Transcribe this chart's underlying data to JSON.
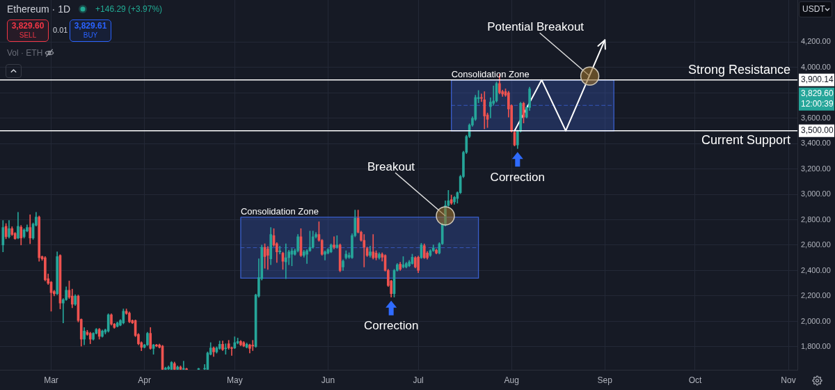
{
  "chart_data": {
    "type": "candlestick",
    "title": "Ethereum · 1D",
    "subtitle": "+146.29 (+3.97%)",
    "ylabel": "USDT",
    "x": [
      "--02-14",
      "--02-15",
      "--02-16",
      "--02-17",
      "--02-18",
      "--02-19",
      "--02-20",
      "--02-21",
      "--02-22",
      "--02-23",
      "--02-24",
      "--02-25",
      "--02-26",
      "--02-27",
      "--02-28",
      "--02-29",
      "--03-01",
      "--03-02",
      "--03-03",
      "--03-04",
      "--03-05",
      "--03-06",
      "--03-07",
      "--03-08",
      "--03-09",
      "--03-10",
      "--03-11",
      "--03-12",
      "--03-13",
      "--03-14",
      "--03-15",
      "--03-16",
      "--03-17",
      "--03-18",
      "--03-19",
      "--03-20",
      "--03-21",
      "--03-22",
      "--03-23",
      "--03-24",
      "--03-25",
      "--03-26",
      "--03-27",
      "--03-28",
      "--03-29",
      "--03-30",
      "--03-31",
      "--04-01",
      "--04-02",
      "--04-03",
      "--04-04",
      "--04-05",
      "--04-06",
      "--04-07",
      "--04-08",
      "--04-09",
      "--04-10",
      "--04-11",
      "--04-12",
      "--04-13",
      "--04-14",
      "--04-15",
      "--04-19",
      "--04-21",
      "--04-22",
      "--04-23",
      "--04-24",
      "--04-25",
      "--04-26",
      "--04-27",
      "--04-28",
      "--04-29",
      "--04-30",
      "--05-01",
      "--05-02",
      "--05-03",
      "--05-04",
      "--05-05",
      "--05-06",
      "--05-07",
      "--05-08",
      "--05-09",
      "--05-10",
      "--05-11",
      "--05-12",
      "--05-13",
      "--05-14",
      "--05-15",
      "--05-16",
      "--05-17",
      "--05-18",
      "--05-19",
      "--05-20",
      "--05-21",
      "--05-22",
      "--05-23",
      "--05-24",
      "--05-25",
      "--05-26",
      "--05-27",
      "--05-28",
      "--05-29",
      "--05-30",
      "--05-31",
      "--06-01",
      "--06-02",
      "--06-03",
      "--06-04",
      "--06-05",
      "--06-06",
      "--06-07",
      "--06-08",
      "--06-09",
      "--06-10",
      "--06-11",
      "--06-12",
      "--06-13",
      "--06-14",
      "--06-15",
      "--06-16",
      "--06-17",
      "--06-18",
      "--06-19",
      "--06-20",
      "--06-21",
      "--06-22",
      "--06-23",
      "--06-24",
      "--06-25",
      "--06-26",
      "--06-27",
      "--06-28",
      "--06-29",
      "--06-30",
      "--07-01",
      "--07-02",
      "--07-03",
      "--07-04",
      "--07-05",
      "--07-06",
      "--07-07",
      "--07-08",
      "--07-09",
      "--07-10",
      "--07-11",
      "--07-12",
      "--07-13",
      "--07-14",
      "--07-15",
      "--07-16",
      "--07-17",
      "--07-18",
      "--07-19",
      "--07-20",
      "--07-21",
      "--07-22",
      "--07-23",
      "--07-24",
      "--07-25",
      "--07-26",
      "--07-27",
      "--07-28",
      "--07-29",
      "--07-30",
      "--07-31",
      "--08-01",
      "--08-02",
      "--08-03",
      "--08-04",
      "--08-05",
      "--08-06",
      "--08-07"
    ],
    "ohlc": [
      [
        2601,
        2794,
        2547,
        2739
      ],
      [
        2748,
        2770,
        2650,
        2666
      ],
      [
        2666,
        2794,
        2655,
        2730
      ],
      [
        2730,
        2745,
        2675,
        2684
      ],
      [
        2693,
        2700,
        2645,
        2651
      ],
      [
        2656,
        2858,
        2650,
        2748
      ],
      [
        2742,
        2755,
        2601,
        2656
      ],
      [
        2666,
        2730,
        2655,
        2720
      ],
      [
        2711,
        2760,
        2705,
        2739
      ],
      [
        2739,
        2839,
        2611,
        2656
      ],
      [
        2656,
        2775,
        2645,
        2766
      ],
      [
        2757,
        2858,
        2750,
        2821
      ],
      [
        2821,
        2830,
        2473,
        2501
      ],
      [
        2510,
        2515,
        2480,
        2492
      ],
      [
        2501,
        2510,
        2318,
        2327
      ],
      [
        2336,
        2373,
        2290,
        2300
      ],
      [
        2309,
        2315,
        2080,
        2226
      ],
      [
        2235,
        2245,
        2200,
        2217
      ],
      [
        2217,
        2547,
        2210,
        2510
      ],
      [
        2519,
        2525,
        2098,
        2144
      ],
      [
        2144,
        2180,
        1988,
        2171
      ],
      [
        2171,
        2272,
        2165,
        2245
      ],
      [
        2245,
        2318,
        2180,
        2190
      ],
      [
        2199,
        2254,
        2107,
        2135
      ],
      [
        2135,
        2210,
        2125,
        2199
      ],
      [
        2199,
        2208,
        1995,
        2007
      ],
      [
        2016,
        2020,
        1805,
        1860
      ],
      [
        1860,
        1952,
        1815,
        1924
      ],
      [
        1915,
        1930,
        1890,
        1897
      ],
      [
        1906,
        1915,
        1824,
        1860
      ],
      [
        1860,
        1912,
        1852,
        1906
      ],
      [
        1906,
        1945,
        1900,
        1937
      ],
      [
        1937,
        1945,
        1860,
        1882
      ],
      [
        1882,
        1932,
        1875,
        1924
      ],
      [
        1915,
        1940,
        1900,
        1933
      ],
      [
        1924,
        2060,
        1915,
        2052
      ],
      [
        2052,
        2060,
        1970,
        1979
      ],
      [
        1979,
        1985,
        1945,
        1952
      ],
      [
        1961,
        1995,
        1955,
        1988
      ],
      [
        1970,
        2015,
        1965,
        2007
      ],
      [
        1988,
        2098,
        1980,
        2080
      ],
      [
        2080,
        2098,
        2055,
        2062
      ],
      [
        2065,
        2075,
        1990,
        1997
      ],
      [
        2007,
        2012,
        1982,
        1988
      ],
      [
        2007,
        2012,
        1880,
        1888
      ],
      [
        1897,
        1905,
        1815,
        1824
      ],
      [
        1833,
        1840,
        1769,
        1796
      ],
      [
        1796,
        1820,
        1790,
        1815
      ],
      [
        1815,
        1915,
        1810,
        1906
      ],
      [
        1906,
        1952,
        1780,
        1787
      ],
      [
        1787,
        1820,
        1741,
        1815
      ],
      [
        1815,
        1820,
        1800,
        1806
      ],
      [
        1815,
        1822,
        1790,
        1796
      ],
      [
        1806,
        1812,
        1620,
        1622
      ],
      [
        1622,
        1640,
        1620,
        1632
      ],
      [
        1625,
        1650,
        1620,
        1640
      ],
      [
        1622,
        1685,
        1620,
        1677
      ],
      [
        1668,
        1680,
        1620,
        1622
      ],
      [
        1622,
        1650,
        1620,
        1641
      ],
      [
        1641,
        1650,
        1620,
        1622
      ],
      [
        1622,
        1687,
        1620,
        1630
      ],
      [
        1627,
        1632,
        1620,
        1621
      ],
      [
        1622,
        1632,
        1620,
        1628
      ],
      [
        1625,
        1661,
        1620,
        1630
      ],
      [
        1622,
        1760,
        1620,
        1751
      ],
      [
        1741,
        1833,
        1735,
        1791
      ],
      [
        1791,
        1800,
        1723,
        1760
      ],
      [
        1760,
        1800,
        1750,
        1791
      ],
      [
        1787,
        1846,
        1780,
        1820
      ],
      [
        1820,
        1846,
        1770,
        1778
      ],
      [
        1785,
        1824,
        1741,
        1791
      ],
      [
        1824,
        1851,
        1780,
        1791
      ],
      [
        1791,
        1800,
        1732,
        1787
      ],
      [
        1791,
        1879,
        1785,
        1833
      ],
      [
        1830,
        1869,
        1822,
        1842
      ],
      [
        1842,
        1850,
        1808,
        1815
      ],
      [
        1833,
        1842,
        1800,
        1806
      ],
      [
        1796,
        1830,
        1790,
        1820
      ],
      [
        1815,
        1822,
        1751,
        1787
      ],
      [
        1813,
        1851,
        1770,
        1806
      ],
      [
        1802,
        2215,
        1795,
        2208
      ],
      [
        2199,
        2492,
        2190,
        2345
      ],
      [
        2336,
        2601,
        2325,
        2583
      ],
      [
        2583,
        2611,
        2418,
        2510
      ],
      [
        2570,
        2590,
        2409,
        2520
      ],
      [
        2492,
        2739,
        2446,
        2684
      ],
      [
        2675,
        2730,
        2590,
        2601
      ],
      [
        2611,
        2620,
        2464,
        2547
      ],
      [
        2547,
        2592,
        2530,
        2555
      ],
      [
        2537,
        2545,
        2409,
        2473
      ],
      [
        2468,
        2611,
        2336,
        2501
      ],
      [
        2501,
        2560,
        2446,
        2547
      ],
      [
        2528,
        2574,
        2437,
        2555
      ],
      [
        2528,
        2570,
        2520,
        2556
      ],
      [
        2556,
        2684,
        2545,
        2666
      ],
      [
        2666,
        2730,
        2510,
        2519
      ],
      [
        2519,
        2560,
        2505,
        2547
      ],
      [
        2528,
        2565,
        2455,
        2556
      ],
      [
        2556,
        2711,
        2550,
        2583
      ],
      [
        2583,
        2711,
        2575,
        2666
      ],
      [
        2666,
        2700,
        2655,
        2684
      ],
      [
        2684,
        2784,
        2630,
        2638
      ],
      [
        2638,
        2645,
        2520,
        2528
      ],
      [
        2528,
        2555,
        2483,
        2547
      ],
      [
        2537,
        2575,
        2530,
        2565
      ],
      [
        2547,
        2610,
        2540,
        2601
      ],
      [
        2601,
        2666,
        2570,
        2583
      ],
      [
        2583,
        2675,
        2575,
        2601
      ],
      [
        2601,
        2610,
        2390,
        2400
      ],
      [
        2428,
        2485,
        2401,
        2474
      ],
      [
        2501,
        2556,
        2490,
        2529
      ],
      [
        2505,
        2540,
        2495,
        2520
      ],
      [
        2501,
        2690,
        2495,
        2675
      ],
      [
        2675,
        2876,
        2665,
        2812
      ],
      [
        2812,
        2876,
        2695,
        2702
      ],
      [
        2702,
        2710,
        2630,
        2638
      ],
      [
        2638,
        2684,
        2428,
        2583
      ],
      [
        2574,
        2585,
        2510,
        2519
      ],
      [
        2519,
        2592,
        2505,
        2547
      ],
      [
        2547,
        2684,
        2490,
        2501
      ],
      [
        2538,
        2556,
        2483,
        2501
      ],
      [
        2501,
        2540,
        2490,
        2529
      ],
      [
        2529,
        2540,
        2474,
        2505
      ],
      [
        2519,
        2525,
        2395,
        2401
      ],
      [
        2401,
        2410,
        2275,
        2282
      ],
      [
        2318,
        2325,
        2191,
        2218
      ],
      [
        2218,
        2410,
        2191,
        2401
      ],
      [
        2401,
        2455,
        2395,
        2446
      ],
      [
        2450,
        2465,
        2400,
        2410
      ],
      [
        2428,
        2510,
        2420,
        2446
      ],
      [
        2428,
        2465,
        2420,
        2455
      ],
      [
        2437,
        2480,
        2430,
        2468
      ],
      [
        2455,
        2529,
        2450,
        2505
      ],
      [
        2501,
        2510,
        2420,
        2428
      ],
      [
        2505,
        2515,
        2382,
        2401
      ],
      [
        2501,
        2615,
        2495,
        2602
      ],
      [
        2596,
        2610,
        2495,
        2501
      ],
      [
        2538,
        2550,
        2490,
        2501
      ],
      [
        2519,
        2565,
        2510,
        2556
      ],
      [
        2556,
        2602,
        2550,
        2578
      ],
      [
        2560,
        2570,
        2530,
        2538
      ],
      [
        2538,
        2620,
        2530,
        2611
      ],
      [
        2611,
        2775,
        2605,
        2766
      ],
      [
        2757,
        2949,
        2750,
        2912
      ],
      [
        2912,
        3031,
        2905,
        2949
      ],
      [
        2958,
        2994,
        2920,
        2930
      ],
      [
        2940,
        2985,
        2921,
        2976
      ],
      [
        2967,
        3020,
        2930,
        3013
      ],
      [
        3013,
        3150,
        3005,
        3140
      ],
      [
        3140,
        3340,
        3130,
        3330
      ],
      [
        3330,
        3465,
        3320,
        3455
      ],
      [
        3455,
        3555,
        3445,
        3545
      ],
      [
        3545,
        3610,
        3535,
        3598
      ],
      [
        3590,
        3780,
        3580,
        3762
      ],
      [
        3752,
        3817,
        3720,
        3762
      ],
      [
        3762,
        3790,
        3730,
        3755
      ],
      [
        3744,
        3808,
        3515,
        3616
      ],
      [
        3625,
        3640,
        3525,
        3590
      ],
      [
        3690,
        3760,
        3600,
        3726
      ],
      [
        3716,
        3853,
        3700,
        3735
      ],
      [
        3735,
        3885,
        3725,
        3872
      ],
      [
        3872,
        3945,
        3790,
        3799
      ],
      [
        3808,
        3820,
        3770,
        3789
      ],
      [
        3808,
        3830,
        3770,
        3780
      ],
      [
        3799,
        3810,
        3607,
        3671
      ],
      [
        3698,
        3705,
        3490,
        3497
      ],
      [
        3488,
        3495,
        3380,
        3388
      ],
      [
        3388,
        3505,
        3360,
        3497
      ],
      [
        3497,
        3725,
        3490,
        3716
      ],
      [
        3716,
        3725,
        3561,
        3607
      ],
      [
        3607,
        3690,
        3600,
        3683
      ],
      [
        3683,
        3844,
        3660,
        3829.6
      ]
    ],
    "colors": [
      "#26a69a",
      "#ef5350",
      "#26a69a",
      "#ef5350",
      "#ef5350",
      "#26a69a",
      "#ef5350",
      "#26a69a",
      "#26a69a",
      "#ef5350",
      "#26a69a",
      "#26a69a",
      "#ef5350",
      "#ef5350",
      "#ef5350",
      "#ef5350",
      "#ef5350",
      "#ef5350",
      "#26a69a",
      "#ef5350",
      "#26a69a",
      "#26a69a",
      "#ef5350",
      "#ef5350",
      "#26a69a",
      "#ef5350",
      "#ef5350",
      "#26a69a",
      "#ef5350",
      "#ef5350",
      "#26a69a",
      "#26a69a",
      "#ef5350",
      "#26a69a",
      "#26a69a",
      "#26a69a",
      "#ef5350",
      "#ef5350",
      "#26a69a",
      "#26a69a",
      "#26a69a",
      "#ef5350",
      "#ef5350",
      "#ef5350",
      "#ef5350",
      "#ef5350",
      "#ef5350",
      "#26a69a",
      "#26a69a",
      "#ef5350",
      "#26a69a",
      "#ef5350",
      "#ef5350",
      "#ef5350",
      "#26a69a",
      "#26a69a",
      "#26a69a",
      "#ef5350",
      "#26a69a",
      "#ef5350",
      "#26a69a",
      "#ef5350",
      "#26a69a",
      "#26a69a",
      "#26a69a",
      "#26a69a",
      "#ef5350",
      "#26a69a",
      "#26a69a",
      "#ef5350",
      "#26a69a",
      "#ef5350",
      "#ef5350",
      "#26a69a",
      "#26a69a",
      "#ef5350",
      "#ef5350",
      "#26a69a",
      "#ef5350",
      "#ef5350",
      "#26a69a",
      "#26a69a",
      "#26a69a",
      "#ef5350",
      "#ef5350",
      "#26a69a",
      "#ef5350",
      "#ef5350",
      "#26a69a",
      "#ef5350",
      "#26a69a",
      "#26a69a",
      "#26a69a",
      "#26a69a",
      "#26a69a",
      "#ef5350",
      "#26a69a",
      "#26a69a",
      "#26a69a",
      "#26a69a",
      "#26a69a",
      "#ef5350",
      "#ef5350",
      "#26a69a",
      "#26a69a",
      "#26a69a",
      "#ef5350",
      "#26a69a",
      "#ef5350",
      "#26a69a",
      "#26a69a",
      "#26a69a",
      "#26a69a",
      "#26a69a",
      "#ef5350",
      "#ef5350",
      "#ef5350",
      "#ef5350",
      "#26a69a",
      "#ef5350",
      "#ef5350",
      "#26a69a",
      "#ef5350",
      "#ef5350",
      "#ef5350",
      "#ef5350",
      "#26a69a",
      "#26a69a",
      "#ef5350",
      "#26a69a",
      "#26a69a",
      "#26a69a",
      "#26a69a",
      "#ef5350",
      "#ef5350",
      "#26a69a",
      "#ef5350",
      "#ef5350",
      "#26a69a",
      "#26a69a",
      "#ef5350",
      "#26a69a",
      "#26a69a",
      "#26a69a",
      "#26a69a",
      "#ef5350",
      "#26a69a",
      "#26a69a",
      "#26a69a",
      "#26a69a",
      "#26a69a",
      "#26a69a",
      "#26a69a",
      "#26a69a",
      "#26a69a",
      "#ef5350",
      "#ef5350",
      "#ef5350",
      "#26a69a",
      "#26a69a",
      "#26a69a",
      "#ef5350",
      "#ef5350",
      "#ef5350",
      "#ef5350",
      "#ef5350",
      "#ef5350",
      "#26a69a",
      "#26a69a",
      "#ef5350",
      "#26a69a",
      "#26a69a"
    ],
    "series": [
      {
        "type": "line",
        "color": "#3a5fcd",
        "line_style": "dashed",
        "x": [
          "--05-03",
          "--07-21"
        ],
        "values": [
          2580,
          2580
        ],
        "lower": [
          2340,
          2340
        ],
        "upper": [
          2820,
          2820
        ]
      },
      {
        "type": "line",
        "color": "#3a5fcd",
        "line_style": "dashed",
        "x": [
          "--07-12",
          "--09-04"
        ],
        "values": [
          3700,
          3700
        ],
        "lower": [
          3500,
          3500
        ],
        "upper": [
          3900,
          3900
        ]
      },
      {
        "type": "line",
        "color": "#ffffff",
        "x": [
          "--08-02",
          "--08-11",
          "--08-19",
          "--09-01"
        ],
        "values": [
          3500,
          3900,
          3500,
          4215
        ]
      }
    ],
    "ref_lines": [
      {
        "axis": "y",
        "value": 3900.14,
        "label": "Strong Resistance",
        "color": "#ffffff"
      },
      {
        "axis": "y",
        "value": 3500,
        "label": "Current Support",
        "color": "#ffffff"
      }
    ],
    "annotations": [
      "3,829.60",
      "SELL",
      "0.01",
      "3,829.61",
      "BUY",
      "Vol · ETH",
      "12:00:39",
      "3,900.14",
      "3,500.00",
      "3,829.60",
      {
        "text": "Consolidation Zone",
        "x": "--05-03",
        "y": 2820
      },
      {
        "text": "Consolidation Zone",
        "x": "--07-12",
        "y": 3900
      },
      {
        "text": "Breakout",
        "x": "--07-10",
        "y": 2830
      },
      {
        "text": "Potential Breakout",
        "x": "--08-27",
        "y": 3930
      },
      {
        "text": "Correction",
        "x": "--06-22",
        "y": 2191
      },
      {
        "text": "Correction",
        "x": "--08-03",
        "y": 3360
      }
    ],
    "xlim": [
      "--02-13",
      "--11-04"
    ],
    "ylim": [
      1619,
      4529
    ],
    "xticks": [
      {
        "value": "--03-01",
        "label": "Mar"
      },
      {
        "value": "--04-01",
        "label": "Apr"
      },
      {
        "value": "--05-01",
        "label": "May"
      },
      {
        "value": "--06-01",
        "label": "Jun"
      },
      {
        "value": "--07-01",
        "label": "Jul"
      },
      {
        "value": "--08-01",
        "label": "Aug"
      },
      {
        "value": "--09-01",
        "label": "Sep"
      },
      {
        "value": "--10-01",
        "label": "Oct"
      },
      {
        "value": "--11-01",
        "label": "Nov"
      }
    ],
    "yticks": [
      {
        "value": 1800,
        "label": "1,800.00"
      },
      {
        "value": 2000,
        "label": "2,000.00"
      },
      {
        "value": 2200,
        "label": "2,200.00"
      },
      {
        "value": 2400,
        "label": "2,400.00"
      },
      {
        "value": 2600,
        "label": "2,600.00"
      },
      {
        "value": 2800,
        "label": "2,800.00"
      },
      {
        "value": 3000,
        "label": "3,000.00"
      },
      {
        "value": 3200,
        "label": "3,200.00"
      },
      {
        "value": 3400,
        "label": "3,400.00"
      },
      {
        "value": 3600,
        "label": "3,600.00"
      },
      {
        "value": 3800,
        "label": null
      },
      {
        "value": 4000,
        "label": "4,000.00"
      },
      {
        "value": 4200,
        "label": "4,200.00"
      }
    ],
    "grid": true
  }
}
